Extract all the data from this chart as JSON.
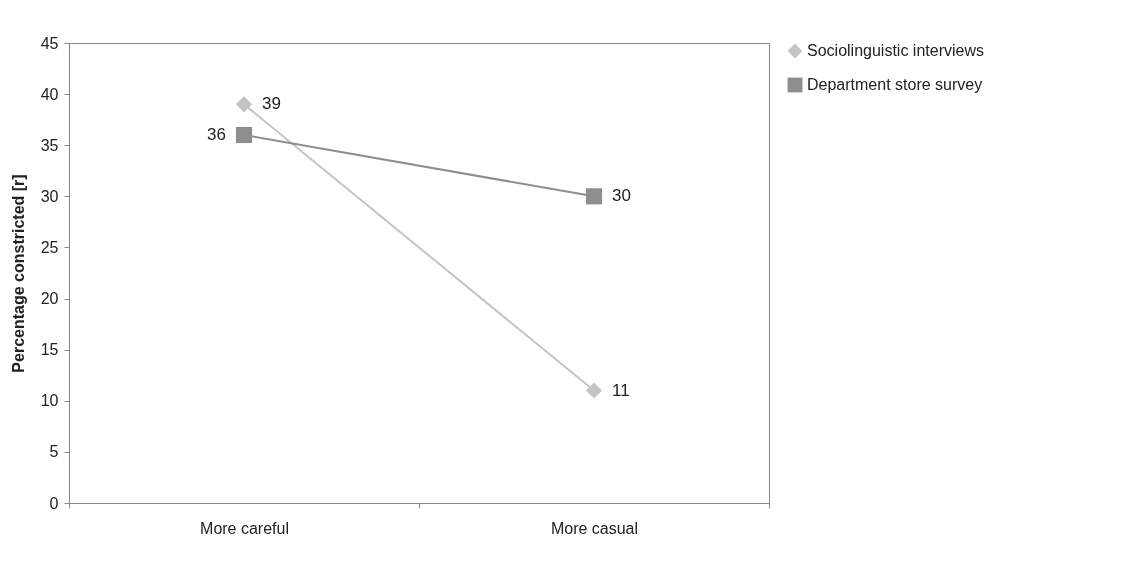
{
  "chart_data": {
    "type": "line",
    "ylabel": "Percentage constricted [r]",
    "categories": [
      "More careful",
      "More casual"
    ],
    "series": [
      {
        "name": "Sociolinguistic interviews",
        "color": "#c4c4c4",
        "marker": "diamond",
        "values": [
          39,
          11
        ]
      },
      {
        "name": "Department store survey",
        "color": "#8e8e8e",
        "marker": "square",
        "values": [
          36,
          30
        ]
      }
    ],
    "ylim": [
      0,
      45
    ],
    "yticks": [
      0,
      5,
      10,
      15,
      20,
      25,
      30,
      35,
      40,
      45
    ],
    "grid": false,
    "legend": "right",
    "data_labels": true
  }
}
